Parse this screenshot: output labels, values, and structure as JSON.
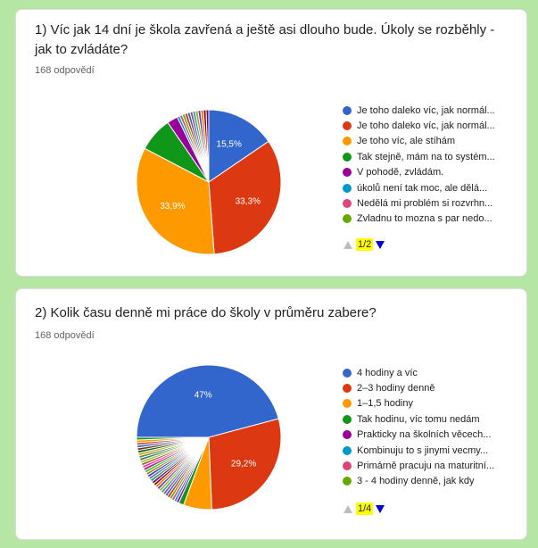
{
  "charts": [
    {
      "title": "1) Víc jak 14 dní je škola zavřená a ještě asi dlouho bude. Úkoly se rozběhly - jak to zvládáte?",
      "responses": "168 odpovědí",
      "pager": "1/2",
      "legend": [
        {
          "label": "Je toho daleko víc, jak normál...",
          "color": "#3366cc"
        },
        {
          "label": "Je toho daleko víc, jak normál...",
          "color": "#dc3912"
        },
        {
          "label": "Je toho víc, ale stíhám",
          "color": "#ff9900"
        },
        {
          "label": "Tak stejně, mám na to systém...",
          "color": "#109618"
        },
        {
          "label": "V pohodě, zvládám.",
          "color": "#990099"
        },
        {
          "label": "úkolů není tak moc, ale dělá...",
          "color": "#0099c6"
        },
        {
          "label": "Nedělá mi problém si rozvrhn...",
          "color": "#dd4477"
        },
        {
          "label": "Zvladnu to mozna s par nedo...",
          "color": "#66aa00"
        }
      ]
    },
    {
      "title": "2) Kolik času denně mi práce do školy v průměru zabere?",
      "responses": "168 odpovědí",
      "pager": "1/4",
      "legend": [
        {
          "label": "4 hodiny a víc",
          "color": "#3366cc"
        },
        {
          "label": "2–3 hodiny denně",
          "color": "#dc3912"
        },
        {
          "label": "1–1,5 hodiny",
          "color": "#ff9900"
        },
        {
          "label": "Tak hodinu, víc tomu nedám",
          "color": "#109618"
        },
        {
          "label": "Prakticky na školních věcech...",
          "color": "#990099"
        },
        {
          "label": "Kombinuju to s jinymi vecmy...",
          "color": "#0099c6"
        },
        {
          "label": "Primárně pracuju na maturitní...",
          "color": "#dd4477"
        },
        {
          "label": "3 - 4 hodiny denně, jak kdy",
          "color": "#66aa00"
        }
      ]
    }
  ],
  "chart_data": [
    {
      "type": "pie",
      "title": "1) Víc jak 14 dní je škola zavřená a ještě asi dlouho bude. Úkoly se rozběhly - jak to zvládáte?",
      "start_angle_deg": 90,
      "slices": [
        {
          "value": 15.5,
          "label": "15,5%",
          "color": "#3366cc"
        },
        {
          "value": 33.3,
          "label": "33,3%",
          "color": "#dc3912"
        },
        {
          "value": 33.9,
          "label": "33,9%",
          "color": "#ff9900"
        },
        {
          "value": 7.7,
          "label": "",
          "color": "#109618"
        },
        {
          "value": 2.4,
          "label": "",
          "color": "#990099"
        },
        {
          "value": 0.6,
          "label": "",
          "color": "#0099c6"
        },
        {
          "value": 0.6,
          "label": "",
          "color": "#dd4477"
        },
        {
          "value": 0.6,
          "label": "",
          "color": "#66aa00"
        },
        {
          "value": 0.6,
          "label": "",
          "color": "#b82e2e"
        },
        {
          "value": 0.6,
          "label": "",
          "color": "#316395"
        },
        {
          "value": 0.6,
          "label": "",
          "color": "#994499"
        },
        {
          "value": 0.6,
          "label": "",
          "color": "#22aa99"
        },
        {
          "value": 0.6,
          "label": "",
          "color": "#aaaa11"
        },
        {
          "value": 0.6,
          "label": "",
          "color": "#6633cc"
        },
        {
          "value": 0.6,
          "label": "",
          "color": "#e67300"
        },
        {
          "value": 0.6,
          "label": "",
          "color": "#8b0707"
        },
        {
          "value": 0.6,
          "label": "",
          "color": "#651067"
        }
      ]
    },
    {
      "type": "pie",
      "title": "2) Kolik času denně mi práce do školy v průměru zabere?",
      "start_angle_deg": 180,
      "slices": [
        {
          "value": 47.0,
          "label": "47%",
          "color": "#3366cc"
        },
        {
          "value": 29.2,
          "label": "29,2%",
          "color": "#dc3912"
        },
        {
          "value": 6.5,
          "label": "",
          "color": "#ff9900"
        },
        {
          "value": 1.2,
          "label": "",
          "color": "#109618"
        },
        {
          "value": 0.6,
          "label": "",
          "color": "#990099"
        },
        {
          "value": 0.6,
          "label": "",
          "color": "#0099c6"
        },
        {
          "value": 0.6,
          "label": "",
          "color": "#dd4477"
        },
        {
          "value": 0.6,
          "label": "",
          "color": "#66aa00"
        },
        {
          "value": 0.6,
          "label": "",
          "color": "#b82e2e"
        },
        {
          "value": 0.6,
          "label": "",
          "color": "#316395"
        },
        {
          "value": 0.6,
          "label": "",
          "color": "#994499"
        },
        {
          "value": 0.6,
          "label": "",
          "color": "#22aa99"
        },
        {
          "value": 0.6,
          "label": "",
          "color": "#aaaa11"
        },
        {
          "value": 0.6,
          "label": "",
          "color": "#6633cc"
        },
        {
          "value": 0.6,
          "label": "",
          "color": "#e67300"
        },
        {
          "value": 0.6,
          "label": "",
          "color": "#8b0707"
        },
        {
          "value": 0.6,
          "label": "",
          "color": "#651067"
        },
        {
          "value": 0.6,
          "label": "",
          "color": "#329262"
        },
        {
          "value": 0.6,
          "label": "",
          "color": "#5574a6"
        },
        {
          "value": 0.6,
          "label": "",
          "color": "#3b3eac"
        },
        {
          "value": 0.6,
          "label": "",
          "color": "#b77322"
        },
        {
          "value": 0.6,
          "label": "",
          "color": "#16d620"
        },
        {
          "value": 0.6,
          "label": "",
          "color": "#b91383"
        },
        {
          "value": 0.6,
          "label": "",
          "color": "#f4359e"
        },
        {
          "value": 0.6,
          "label": "",
          "color": "#9c5935"
        },
        {
          "value": 0.6,
          "label": "",
          "color": "#a9c413"
        },
        {
          "value": 0.6,
          "label": "",
          "color": "#2a778d"
        },
        {
          "value": 0.6,
          "label": "",
          "color": "#668d1c"
        },
        {
          "value": 0.6,
          "label": "",
          "color": "#bea413"
        },
        {
          "value": 0.6,
          "label": "",
          "color": "#0c5922"
        },
        {
          "value": 0.6,
          "label": "",
          "color": "#743411"
        },
        {
          "value": 0.6,
          "label": "",
          "color": "#3366cc"
        },
        {
          "value": 0.6,
          "label": "",
          "color": "#dc3912"
        },
        {
          "value": 0.6,
          "label": "",
          "color": "#ff9900"
        },
        {
          "value": 0.6,
          "label": "",
          "color": "#109618"
        }
      ]
    }
  ]
}
